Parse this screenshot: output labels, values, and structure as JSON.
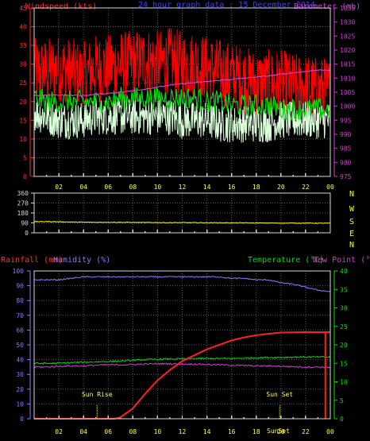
{
  "colors": {
    "background": "#000000",
    "frame": "#d8d8d8",
    "grid": "#5a5a5a",
    "wind_gust": "#ff0000",
    "wind_avg": "#00e000",
    "wind_min": "#d8ffd8",
    "barometer": "#d040d0",
    "direction": "#ffff00",
    "rainfall": "#ff2020",
    "humidity": "#8080ff",
    "temperature": "#00e000",
    "dewpoint": "#d040d0",
    "wind_axis": "#ff3030",
    "baro_axis": "#d040d0",
    "dir_axis": "#ffff00",
    "rain_axis": "#8080ff",
    "temp_axis": "#00e000",
    "title": "#4040ff",
    "sun_label": "#ffff40",
    "time_label": "#ffff40"
  },
  "chart_data": [
    {
      "type": "line",
      "panel": "wind",
      "title": "24 hour graph data : 15 December 2014",
      "ylabel_left": "Windspeed (kts)",
      "ylabel_right": "Barometer (mb)",
      "x_ticks": [
        "02",
        "04",
        "06",
        "08",
        "10",
        "12",
        "14",
        "16",
        "18",
        "20",
        "22",
        "00"
      ],
      "ylim_left": [
        0,
        45
      ],
      "yticks_left": [
        "0",
        "5",
        "10",
        "15",
        "20",
        "25",
        "30",
        "35",
        "40",
        "45"
      ],
      "ylim_right": [
        975,
        1035
      ],
      "yticks_right": [
        "975",
        "980",
        "985",
        "990",
        "995",
        "1000",
        "1005",
        "1010",
        "1015",
        "1020",
        "1025",
        "1030",
        "1035"
      ],
      "grid": true,
      "series": [
        {
          "key": "gust",
          "values": [
            28,
            28,
            29,
            28,
            27,
            29,
            29,
            30,
            30,
            31,
            30,
            31,
            30,
            30,
            29,
            28,
            27,
            26,
            25,
            25,
            25,
            24,
            24,
            23,
            23
          ],
          "noise": 9
        },
        {
          "key": "avg",
          "values": [
            21,
            20,
            20,
            20,
            20,
            20,
            20,
            21,
            21,
            21,
            21,
            21,
            21,
            21,
            20,
            20,
            19,
            19,
            19,
            19,
            18,
            18,
            18,
            18,
            18
          ],
          "noise": 3
        },
        {
          "key": "min",
          "values": [
            17,
            16,
            15,
            15,
            15,
            16,
            16,
            16,
            16,
            16,
            16,
            16,
            15,
            15,
            15,
            14,
            14,
            14,
            14,
            14,
            15,
            15,
            15,
            15,
            15
          ],
          "noise": 5
        },
        {
          "key": "barometer",
          "values": [
            1003.8,
            1003.9,
            1004,
            1003.9,
            1003.8,
            1004.2,
            1004.6,
            1005.0,
            1005.5,
            1006.1,
            1006.8,
            1007.5,
            1008.0,
            1008.4,
            1008.8,
            1009.2,
            1009.6,
            1010.0,
            1010.4,
            1010.8,
            1011.4,
            1011.9,
            1012.4,
            1012.9,
            1012.9
          ],
          "noise": 0.15
        }
      ]
    },
    {
      "type": "line",
      "panel": "direction",
      "x_ticks": [
        "02",
        "04",
        "06",
        "08",
        "10",
        "12",
        "14",
        "16",
        "18",
        "20",
        "22",
        "00"
      ],
      "ylim": [
        0,
        360
      ],
      "yticks": [
        "0",
        "90",
        "180",
        "270",
        "360"
      ],
      "compass_labels": [
        "N",
        "W",
        "S",
        "E",
        "N"
      ],
      "grid": true,
      "series": [
        {
          "key": "direction",
          "values": [
            101,
            102,
            100,
            98,
            96,
            95,
            96,
            95,
            94,
            93,
            93,
            92,
            92,
            92,
            91,
            91,
            90,
            90,
            89,
            89,
            88,
            88,
            88,
            87,
            87
          ],
          "noise": 3
        }
      ]
    },
    {
      "type": "line",
      "panel": "rain",
      "ylabel_left_1": "Rainfall (mm)",
      "ylabel_left_2": "Humidity (%)",
      "ylabel_right_1": "Temperature (°C)",
      "ylabel_right_2": "Dew Point (°C)",
      "x_ticks": [
        "02",
        "04",
        "06",
        "08",
        "10",
        "12",
        "14",
        "16",
        "18",
        "20",
        "22",
        "00"
      ],
      "ylim_left": [
        0,
        100
      ],
      "yticks_left": [
        "0",
        "10",
        "20",
        "30",
        "40",
        "50",
        "60",
        "70",
        "80",
        "90",
        "100"
      ],
      "ylim_right": [
        0,
        40
      ],
      "yticks_right": [
        "0",
        "5",
        "10",
        "15",
        "20",
        "25",
        "30",
        "35",
        "40"
      ],
      "grid": true,
      "annotations": [
        {
          "label": "Sun Rise",
          "x_hour": 5.1
        },
        {
          "label": "Sun Set",
          "x_hour": 19.9
        }
      ],
      "series": [
        {
          "key": "rainfall",
          "x_hours": [
            0,
            6.5,
            7,
            8,
            9,
            10,
            11,
            12,
            13,
            14,
            15,
            16,
            17,
            18,
            19,
            20,
            21,
            22,
            23,
            24
          ],
          "values": [
            0,
            0,
            1,
            7,
            17,
            26,
            33,
            39,
            43,
            47,
            50,
            53,
            55,
            56.5,
            57.5,
            58.3,
            58.5,
            58.6,
            58.6,
            58.6
          ],
          "noise": 0
        },
        {
          "key": "humidity",
          "values": [
            94,
            94,
            94,
            95,
            96,
            96,
            96,
            96,
            96,
            96,
            96,
            96,
            96,
            96,
            96,
            96,
            95,
            95,
            94,
            94,
            92,
            91,
            89,
            87,
            86
          ],
          "noise": 0.4
        },
        {
          "key": "temperature",
          "values": [
            15,
            15,
            15,
            15.2,
            15.3,
            15.4,
            15.5,
            15.6,
            15.8,
            16,
            16.1,
            16.2,
            16.2,
            16.3,
            16.3,
            16.3,
            16.3,
            16.4,
            16.5,
            16.6,
            16.6,
            16.7,
            16.7,
            16.7,
            16.7
          ],
          "noise": 0.2
        },
        {
          "key": "dewpoint",
          "values": [
            14,
            14,
            14.2,
            14.3,
            14.3,
            14.5,
            14.6,
            14.6,
            14.7,
            14.8,
            14.9,
            14.9,
            14.8,
            14.8,
            14.7,
            14.6,
            14.5,
            14.4,
            14.3,
            14.3,
            14.2,
            14.1,
            14.0,
            14.0,
            14.0
          ],
          "noise": 0.2
        }
      ]
    }
  ],
  "time_marker": "SunSet"
}
